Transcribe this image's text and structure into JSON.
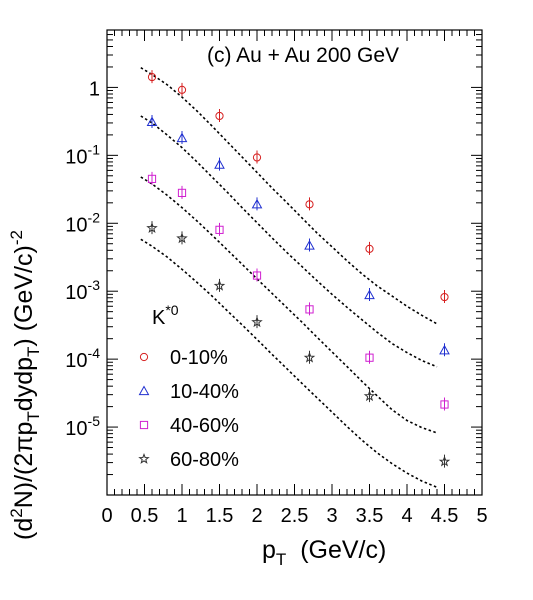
{
  "chart_data": {
    "type": "scatter",
    "title": "(c) Au + Au 200 GeV",
    "xlabel": {
      "main": "p",
      "sub": "T",
      "rest": "  (GeV/c)"
    },
    "ylabel": {
      "parts": [
        {
          "t": "(d",
          "s": "n"
        },
        {
          "t": "2",
          "s": "sup"
        },
        {
          "t": "N)/(2πp",
          "s": "n"
        },
        {
          "t": "T",
          "s": "sub"
        },
        {
          "t": "dydp",
          "s": "n"
        },
        {
          "t": "T",
          "s": "sub"
        },
        {
          "t": ")  (GeV/c)",
          "s": "n"
        },
        {
          "t": "-2",
          "s": "sup"
        }
      ]
    },
    "xlim": [
      0,
      5
    ],
    "ylim": [
      1e-06,
      7
    ],
    "yscale": "log",
    "x_ticks": [
      "0",
      "0.5",
      "1",
      "1.5",
      "2",
      "2.5",
      "3",
      "3.5",
      "4",
      "4.5",
      "5"
    ],
    "y_ticks": [
      {
        "value": 1e-05,
        "base": "10",
        "exp": "-5"
      },
      {
        "value": 0.0001,
        "base": "10",
        "exp": "-4"
      },
      {
        "value": 0.001,
        "base": "10",
        "exp": "-3"
      },
      {
        "value": 0.01,
        "base": "10",
        "exp": "-2"
      },
      {
        "value": 0.1,
        "base": "10",
        "exp": "-1"
      },
      {
        "value": 1,
        "base": "1",
        "exp": ""
      }
    ],
    "legend": {
      "title": {
        "main": "K",
        "sup": "*0"
      },
      "placement": "bottom-left"
    },
    "series": [
      {
        "name": "0-10%",
        "marker": "circle",
        "color": "#d62020",
        "x": [
          0.6,
          1.0,
          1.5,
          2.0,
          2.7,
          3.5,
          4.5
        ],
        "y": [
          1.42,
          0.92,
          0.38,
          0.093,
          0.019,
          0.0042,
          0.00082
        ],
        "fit_x": [
          0.45,
          0.6,
          0.8,
          1.0,
          1.2,
          1.4,
          1.6,
          1.8,
          2.0,
          2.2,
          2.4,
          2.6,
          2.8,
          3.0,
          3.2,
          3.4,
          3.6,
          3.8,
          4.0,
          4.2,
          4.4
        ],
        "fit_y": [
          1.95,
          1.55,
          1.1,
          0.72,
          0.45,
          0.27,
          0.16,
          0.095,
          0.056,
          0.033,
          0.02,
          0.012,
          0.0072,
          0.0045,
          0.0028,
          0.0018,
          0.0012,
          0.00085,
          0.0006,
          0.00044,
          0.00033
        ]
      },
      {
        "name": "10-40%",
        "marker": "triangle",
        "color": "#2030d0",
        "x": [
          0.6,
          1.0,
          1.5,
          2.0,
          2.7,
          3.5,
          4.5
        ],
        "y": [
          0.31,
          0.18,
          0.073,
          0.019,
          0.0047,
          0.00088,
          0.000135
        ],
        "fit_x": [
          0.45,
          0.6,
          0.8,
          1.0,
          1.2,
          1.4,
          1.6,
          1.8,
          2.0,
          2.2,
          2.4,
          2.6,
          2.8,
          3.0,
          3.2,
          3.4,
          3.6,
          3.8,
          4.0,
          4.2,
          4.4
        ],
        "fit_y": [
          0.38,
          0.3,
          0.2,
          0.13,
          0.08,
          0.048,
          0.029,
          0.017,
          0.0102,
          0.0061,
          0.0037,
          0.0023,
          0.00143,
          0.0009,
          0.00058,
          0.00038,
          0.00025,
          0.00017,
          0.000125,
          9.5e-05,
          7.7e-05
        ]
      },
      {
        "name": "40-60%",
        "marker": "square",
        "color": "#d020d0",
        "x": [
          0.6,
          1.0,
          1.5,
          2.0,
          2.7,
          3.5,
          4.5
        ],
        "y": [
          0.045,
          0.028,
          0.008,
          0.0017,
          0.00054,
          0.000105,
          2.15e-05
        ],
        "fit_x": [
          0.45,
          0.6,
          0.8,
          1.0,
          1.2,
          1.4,
          1.6,
          1.8,
          2.0,
          2.2,
          2.4,
          2.6,
          2.8,
          3.0,
          3.2,
          3.4,
          3.6,
          3.8,
          4.0,
          4.2,
          4.4
        ],
        "fit_y": [
          0.048,
          0.038,
          0.026,
          0.017,
          0.0108,
          0.0067,
          0.0041,
          0.0025,
          0.00152,
          0.00093,
          0.00057,
          0.00035,
          0.00021,
          0.000128,
          7.8e-05,
          4.7e-05,
          2.9e-05,
          1.8e-05,
          1.25e-05,
          9.8e-06,
          8.2e-06
        ]
      },
      {
        "name": "60-80%",
        "marker": "star",
        "color": "#333333",
        "x": [
          0.6,
          1.0,
          1.5,
          2.0,
          2.7,
          3.5,
          4.5
        ],
        "y": [
          0.0085,
          0.006,
          0.0012,
          0.00035,
          0.000105,
          2.85e-05,
          3.1e-06
        ],
        "fit_x": [
          0.45,
          0.6,
          0.8,
          1.0,
          1.2,
          1.4,
          1.6,
          1.8,
          2.0,
          2.2,
          2.4,
          2.6,
          2.8,
          3.0,
          3.2,
          3.4,
          3.6,
          3.8,
          4.0,
          4.2,
          4.4
        ],
        "fit_y": [
          0.0058,
          0.0046,
          0.0032,
          0.0021,
          0.00135,
          0.00085,
          0.00052,
          0.00032,
          0.000195,
          0.000118,
          7.2e-05,
          4.4e-05,
          2.7e-05,
          1.66e-05,
          1.02e-05,
          6.4e-06,
          4.2e-06,
          2.9e-06,
          2.1e-06,
          1.6e-06,
          1.3e-06
        ]
      }
    ]
  }
}
